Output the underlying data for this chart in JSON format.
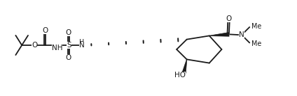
{
  "background": "#ffffff",
  "line_color": "#1a1a1a",
  "line_width": 1.3,
  "font_size": 7.5,
  "figsize": [
    4.24,
    1.38
  ],
  "dpi": 100,
  "xlim": [
    0,
    105
  ],
  "ylim": [
    0,
    34
  ]
}
